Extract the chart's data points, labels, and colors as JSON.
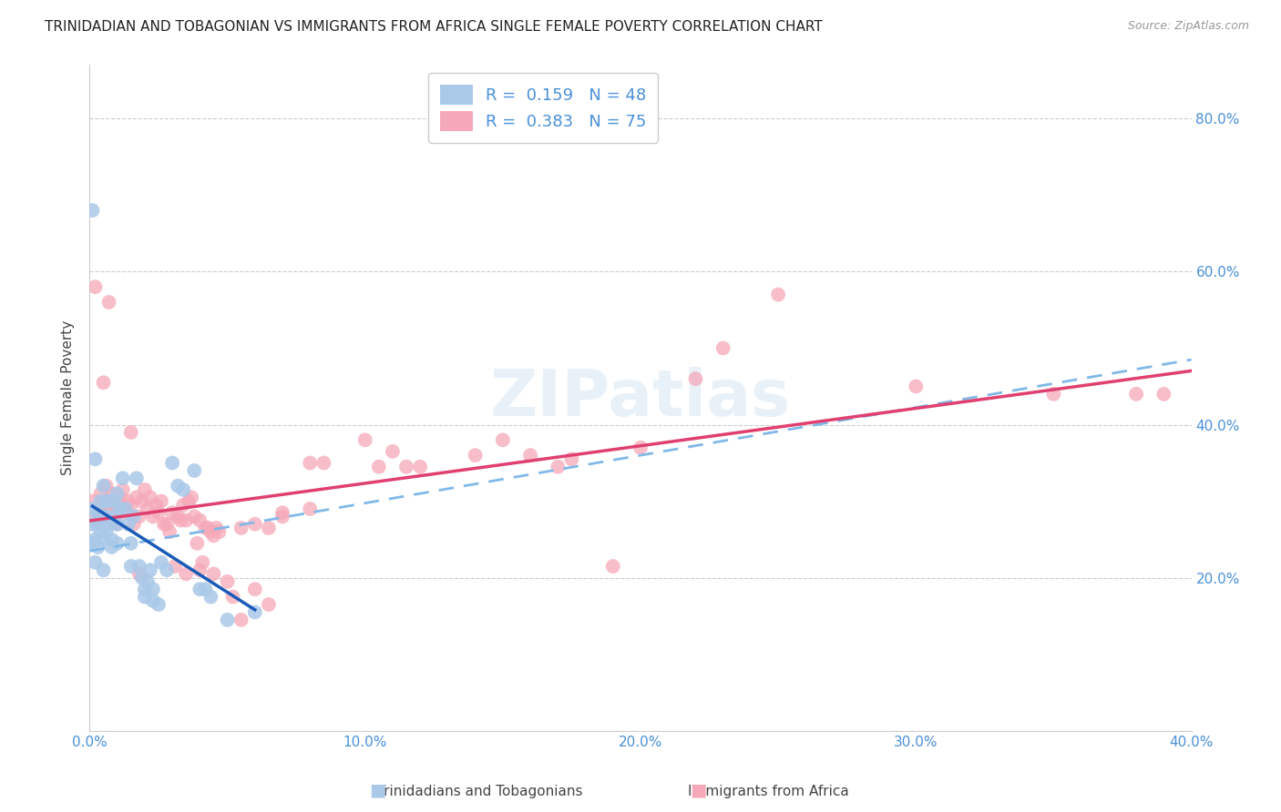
{
  "title": "TRINIDADIAN AND TOBAGONIAN VS IMMIGRANTS FROM AFRICA SINGLE FEMALE POVERTY CORRELATION CHART",
  "source": "Source: ZipAtlas.com",
  "ylabel": "Single Female Poverty",
  "legend1_r": "0.159",
  "legend1_n": "48",
  "legend2_r": "0.383",
  "legend2_n": "75",
  "xmin": 0.0,
  "xmax": 0.4,
  "ymin": 0.0,
  "ymax": 0.87,
  "ytick_vals": [
    0.2,
    0.4,
    0.6,
    0.8
  ],
  "xtick_vals": [
    0.0,
    0.1,
    0.2,
    0.3,
    0.4
  ],
  "watermark": "ZIPatlas",
  "blue_scatter_x": [
    0.001,
    0.001,
    0.001,
    0.002,
    0.002,
    0.003,
    0.003,
    0.003,
    0.004,
    0.004,
    0.004,
    0.005,
    0.005,
    0.005,
    0.005,
    0.006,
    0.006,
    0.006,
    0.007,
    0.007,
    0.008,
    0.008,
    0.009,
    0.009,
    0.01,
    0.01,
    0.01,
    0.011,
    0.012,
    0.013,
    0.014,
    0.015,
    0.015,
    0.016,
    0.017,
    0.018,
    0.019,
    0.02,
    0.02,
    0.021,
    0.022,
    0.023,
    0.023,
    0.025,
    0.026,
    0.028,
    0.03,
    0.032,
    0.034,
    0.038,
    0.04,
    0.042,
    0.044,
    0.05,
    0.06,
    0.001,
    0.002
  ],
  "blue_scatter_y": [
    0.245,
    0.27,
    0.29,
    0.25,
    0.22,
    0.285,
    0.27,
    0.24,
    0.3,
    0.28,
    0.26,
    0.32,
    0.25,
    0.27,
    0.21,
    0.3,
    0.28,
    0.26,
    0.3,
    0.27,
    0.25,
    0.24,
    0.3,
    0.28,
    0.27,
    0.245,
    0.31,
    0.29,
    0.33,
    0.29,
    0.27,
    0.245,
    0.215,
    0.28,
    0.33,
    0.215,
    0.2,
    0.185,
    0.175,
    0.195,
    0.21,
    0.185,
    0.17,
    0.165,
    0.22,
    0.21,
    0.35,
    0.32,
    0.315,
    0.34,
    0.185,
    0.185,
    0.175,
    0.145,
    0.155,
    0.68,
    0.355
  ],
  "pink_scatter_x": [
    0.001,
    0.002,
    0.003,
    0.003,
    0.004,
    0.005,
    0.005,
    0.006,
    0.006,
    0.007,
    0.008,
    0.008,
    0.009,
    0.01,
    0.01,
    0.011,
    0.012,
    0.013,
    0.014,
    0.015,
    0.016,
    0.017,
    0.018,
    0.019,
    0.02,
    0.021,
    0.022,
    0.023,
    0.024,
    0.025,
    0.026,
    0.027,
    0.028,
    0.029,
    0.03,
    0.031,
    0.032,
    0.033,
    0.034,
    0.035,
    0.036,
    0.037,
    0.038,
    0.039,
    0.04,
    0.041,
    0.042,
    0.043,
    0.044,
    0.045,
    0.046,
    0.047,
    0.05,
    0.052,
    0.055,
    0.06,
    0.065,
    0.07,
    0.08,
    0.085,
    0.1,
    0.105,
    0.11,
    0.115,
    0.12,
    0.14,
    0.15,
    0.16,
    0.17,
    0.175,
    0.19,
    0.2,
    0.22,
    0.23,
    0.25,
    0.3,
    0.35,
    0.38,
    0.39,
    0.005,
    0.015,
    0.018,
    0.035,
    0.04,
    0.045,
    0.055,
    0.06,
    0.065,
    0.07,
    0.08,
    0.002,
    0.007
  ],
  "pink_scatter_y": [
    0.3,
    0.28,
    0.285,
    0.27,
    0.31,
    0.295,
    0.275,
    0.32,
    0.29,
    0.285,
    0.31,
    0.275,
    0.295,
    0.3,
    0.27,
    0.305,
    0.315,
    0.285,
    0.3,
    0.295,
    0.27,
    0.305,
    0.28,
    0.3,
    0.315,
    0.29,
    0.305,
    0.28,
    0.295,
    0.285,
    0.3,
    0.27,
    0.27,
    0.26,
    0.285,
    0.215,
    0.28,
    0.275,
    0.295,
    0.275,
    0.3,
    0.305,
    0.28,
    0.245,
    0.275,
    0.22,
    0.265,
    0.265,
    0.26,
    0.255,
    0.265,
    0.26,
    0.195,
    0.175,
    0.145,
    0.185,
    0.165,
    0.285,
    0.35,
    0.35,
    0.38,
    0.345,
    0.365,
    0.345,
    0.345,
    0.36,
    0.38,
    0.36,
    0.345,
    0.355,
    0.215,
    0.37,
    0.46,
    0.5,
    0.57,
    0.45,
    0.44,
    0.44,
    0.44,
    0.455,
    0.39,
    0.205,
    0.205,
    0.21,
    0.205,
    0.265,
    0.27,
    0.265,
    0.28,
    0.29,
    0.58,
    0.56
  ],
  "blue_scatter_color": "#aac8e8",
  "pink_scatter_color": "#f5a8b8",
  "blue_line_color": "#1a5ab8",
  "pink_line_color": "#e04070",
  "blue_dash_color": "#80b8e8",
  "axis_tick_color": "#4a90d9",
  "grid_color": "#cccccc",
  "title_color": "#222222",
  "source_color": "#999999",
  "ylabel_color": "#444444",
  "background_color": "#ffffff",
  "legend_label_color": "#4a90d9"
}
